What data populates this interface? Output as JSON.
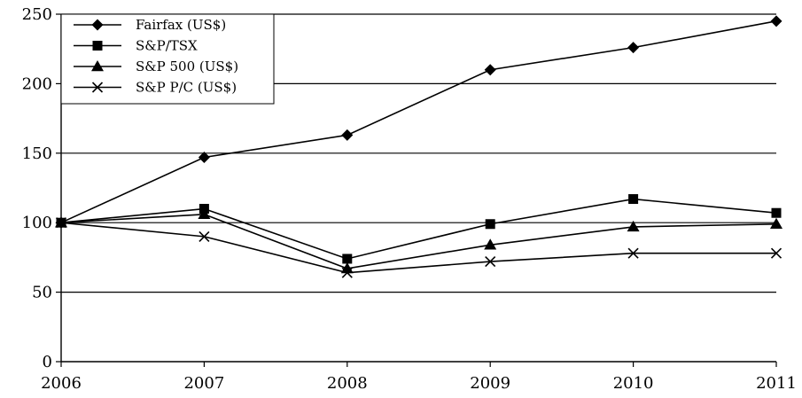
{
  "chart_data": {
    "type": "line",
    "x": [
      "2006",
      "2007",
      "2008",
      "2009",
      "2010",
      "2011"
    ],
    "ylim": [
      0,
      250
    ],
    "yticks": [
      0,
      50,
      100,
      150,
      200,
      250
    ],
    "grid": "horizontal",
    "legend_position": "top-left",
    "series": [
      {
        "name": "Fairfax (US$)",
        "marker": "diamond",
        "values": [
          100,
          147,
          163,
          210,
          226,
          245
        ]
      },
      {
        "name": "S&P/TSX",
        "marker": "square",
        "values": [
          100,
          110,
          74,
          99,
          117,
          107
        ]
      },
      {
        "name": "S&P 500 (US$)",
        "marker": "triangle",
        "values": [
          100,
          106,
          67,
          84,
          97,
          99
        ]
      },
      {
        "name": "S&P P/C (US$)",
        "marker": "x",
        "values": [
          100,
          90,
          64,
          72,
          78,
          78
        ]
      }
    ]
  }
}
